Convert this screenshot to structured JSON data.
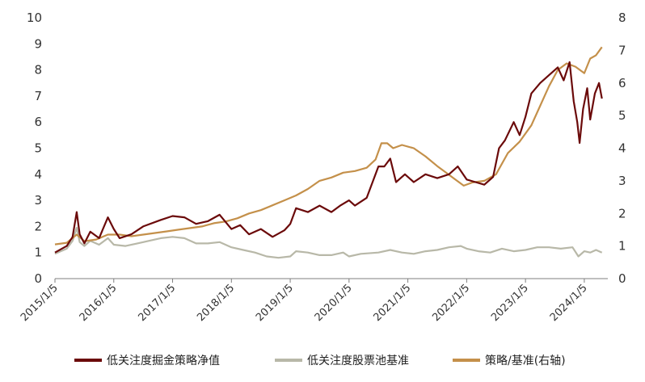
{
  "chart_data": {
    "type": "line",
    "title": "",
    "x_tick_labels": [
      "2015/1/5",
      "2016/1/5",
      "2017/1/5",
      "2018/1/5",
      "2019/1/5",
      "2020/1/5",
      "2021/1/5",
      "2022/1/5",
      "2023/1/5",
      "2024/1/5"
    ],
    "x_range": [
      2015.0,
      2024.4
    ],
    "ylim_left": [
      0,
      10
    ],
    "ylim_right": [
      0,
      8
    ],
    "y_left_ticks": [
      "0",
      "1",
      "2",
      "3",
      "4",
      "5",
      "6",
      "7",
      "8",
      "9",
      "10"
    ],
    "y_right_ticks": [
      "0",
      "1",
      "2",
      "3",
      "4",
      "5",
      "6",
      "7",
      "8"
    ],
    "grid": false,
    "legend_position": "bottom",
    "series": [
      {
        "name": "低关注度掘金策略净值",
        "axis": "left",
        "color": "#6B0A0A",
        "points": [
          [
            2015.0,
            1.0
          ],
          [
            2015.2,
            1.25
          ],
          [
            2015.3,
            1.6
          ],
          [
            2015.37,
            2.55
          ],
          [
            2015.42,
            1.7
          ],
          [
            2015.5,
            1.35
          ],
          [
            2015.6,
            1.8
          ],
          [
            2015.75,
            1.55
          ],
          [
            2015.9,
            2.35
          ],
          [
            2016.0,
            1.9
          ],
          [
            2016.1,
            1.55
          ],
          [
            2016.3,
            1.7
          ],
          [
            2016.5,
            2.0
          ],
          [
            2016.8,
            2.25
          ],
          [
            2017.0,
            2.4
          ],
          [
            2017.2,
            2.35
          ],
          [
            2017.4,
            2.1
          ],
          [
            2017.6,
            2.2
          ],
          [
            2017.8,
            2.45
          ],
          [
            2018.0,
            1.9
          ],
          [
            2018.15,
            2.05
          ],
          [
            2018.3,
            1.7
          ],
          [
            2018.5,
            1.9
          ],
          [
            2018.7,
            1.6
          ],
          [
            2018.9,
            1.85
          ],
          [
            2019.0,
            2.1
          ],
          [
            2019.1,
            2.7
          ],
          [
            2019.3,
            2.55
          ],
          [
            2019.5,
            2.8
          ],
          [
            2019.7,
            2.55
          ],
          [
            2019.85,
            2.8
          ],
          [
            2020.0,
            3.0
          ],
          [
            2020.1,
            2.8
          ],
          [
            2020.3,
            3.1
          ],
          [
            2020.5,
            4.3
          ],
          [
            2020.6,
            4.3
          ],
          [
            2020.7,
            4.6
          ],
          [
            2020.8,
            3.7
          ],
          [
            2020.95,
            4.0
          ],
          [
            2021.1,
            3.7
          ],
          [
            2021.3,
            4.0
          ],
          [
            2021.5,
            3.85
          ],
          [
            2021.7,
            4.0
          ],
          [
            2021.85,
            4.3
          ],
          [
            2022.0,
            3.8
          ],
          [
            2022.15,
            3.7
          ],
          [
            2022.3,
            3.6
          ],
          [
            2022.45,
            3.9
          ],
          [
            2022.55,
            5.0
          ],
          [
            2022.65,
            5.3
          ],
          [
            2022.8,
            6.0
          ],
          [
            2022.9,
            5.5
          ],
          [
            2023.0,
            6.2
          ],
          [
            2023.1,
            7.1
          ],
          [
            2023.25,
            7.5
          ],
          [
            2023.4,
            7.8
          ],
          [
            2023.55,
            8.1
          ],
          [
            2023.65,
            7.6
          ],
          [
            2023.75,
            8.3
          ],
          [
            2023.82,
            6.8
          ],
          [
            2023.88,
            6.0
          ],
          [
            2023.92,
            5.2
          ],
          [
            2023.98,
            6.5
          ],
          [
            2024.05,
            7.3
          ],
          [
            2024.1,
            6.1
          ],
          [
            2024.18,
            7.1
          ],
          [
            2024.25,
            7.5
          ],
          [
            2024.3,
            6.9
          ]
        ]
      },
      {
        "name": "低关注度股票池基准",
        "axis": "left",
        "color": "#B8B8A8",
        "points": [
          [
            2015.0,
            0.95
          ],
          [
            2015.2,
            1.15
          ],
          [
            2015.3,
            1.45
          ],
          [
            2015.37,
            1.95
          ],
          [
            2015.42,
            1.4
          ],
          [
            2015.5,
            1.25
          ],
          [
            2015.6,
            1.45
          ],
          [
            2015.75,
            1.3
          ],
          [
            2015.9,
            1.55
          ],
          [
            2016.0,
            1.3
          ],
          [
            2016.2,
            1.25
          ],
          [
            2016.4,
            1.35
          ],
          [
            2016.6,
            1.45
          ],
          [
            2016.8,
            1.55
          ],
          [
            2017.0,
            1.6
          ],
          [
            2017.2,
            1.55
          ],
          [
            2017.4,
            1.35
          ],
          [
            2017.6,
            1.35
          ],
          [
            2017.8,
            1.4
          ],
          [
            2018.0,
            1.2
          ],
          [
            2018.2,
            1.1
          ],
          [
            2018.4,
            1.0
          ],
          [
            2018.6,
            0.85
          ],
          [
            2018.8,
            0.8
          ],
          [
            2019.0,
            0.85
          ],
          [
            2019.1,
            1.05
          ],
          [
            2019.3,
            1.0
          ],
          [
            2019.5,
            0.9
          ],
          [
            2019.7,
            0.9
          ],
          [
            2019.9,
            1.0
          ],
          [
            2020.0,
            0.85
          ],
          [
            2020.2,
            0.95
          ],
          [
            2020.5,
            1.0
          ],
          [
            2020.7,
            1.1
          ],
          [
            2020.9,
            1.0
          ],
          [
            2021.1,
            0.95
          ],
          [
            2021.3,
            1.05
          ],
          [
            2021.5,
            1.1
          ],
          [
            2021.7,
            1.2
          ],
          [
            2021.9,
            1.25
          ],
          [
            2022.0,
            1.15
          ],
          [
            2022.2,
            1.05
          ],
          [
            2022.4,
            1.0
          ],
          [
            2022.6,
            1.15
          ],
          [
            2022.8,
            1.05
          ],
          [
            2023.0,
            1.1
          ],
          [
            2023.2,
            1.2
          ],
          [
            2023.4,
            1.2
          ],
          [
            2023.6,
            1.15
          ],
          [
            2023.8,
            1.2
          ],
          [
            2023.9,
            0.85
          ],
          [
            2024.0,
            1.05
          ],
          [
            2024.1,
            1.0
          ],
          [
            2024.2,
            1.1
          ],
          [
            2024.3,
            1.0
          ]
        ]
      },
      {
        "name": "策略/基准(右轴)",
        "axis": "right",
        "color": "#C4904A",
        "points": [
          [
            2015.0,
            1.05
          ],
          [
            2015.2,
            1.1
          ],
          [
            2015.37,
            1.35
          ],
          [
            2015.5,
            1.15
          ],
          [
            2015.7,
            1.2
          ],
          [
            2015.9,
            1.35
          ],
          [
            2016.1,
            1.35
          ],
          [
            2016.3,
            1.3
          ],
          [
            2016.5,
            1.35
          ],
          [
            2016.7,
            1.4
          ],
          [
            2016.9,
            1.45
          ],
          [
            2017.1,
            1.5
          ],
          [
            2017.3,
            1.55
          ],
          [
            2017.5,
            1.6
          ],
          [
            2017.7,
            1.7
          ],
          [
            2017.9,
            1.75
          ],
          [
            2018.1,
            1.85
          ],
          [
            2018.3,
            2.0
          ],
          [
            2018.5,
            2.1
          ],
          [
            2018.7,
            2.25
          ],
          [
            2018.9,
            2.4
          ],
          [
            2019.1,
            2.55
          ],
          [
            2019.3,
            2.75
          ],
          [
            2019.5,
            3.0
          ],
          [
            2019.7,
            3.1
          ],
          [
            2019.9,
            3.25
          ],
          [
            2020.1,
            3.3
          ],
          [
            2020.3,
            3.4
          ],
          [
            2020.45,
            3.65
          ],
          [
            2020.55,
            4.15
          ],
          [
            2020.65,
            4.15
          ],
          [
            2020.75,
            4.0
          ],
          [
            2020.9,
            4.1
          ],
          [
            2021.1,
            4.0
          ],
          [
            2021.3,
            3.75
          ],
          [
            2021.5,
            3.45
          ],
          [
            2021.65,
            3.25
          ],
          [
            2021.8,
            3.05
          ],
          [
            2021.95,
            2.85
          ],
          [
            2022.1,
            2.95
          ],
          [
            2022.3,
            3.0
          ],
          [
            2022.5,
            3.2
          ],
          [
            2022.7,
            3.85
          ],
          [
            2022.9,
            4.2
          ],
          [
            2023.1,
            4.7
          ],
          [
            2023.25,
            5.3
          ],
          [
            2023.4,
            5.9
          ],
          [
            2023.55,
            6.4
          ],
          [
            2023.7,
            6.6
          ],
          [
            2023.85,
            6.5
          ],
          [
            2024.0,
            6.3
          ],
          [
            2024.1,
            6.75
          ],
          [
            2024.2,
            6.85
          ],
          [
            2024.3,
            7.1
          ]
        ]
      }
    ]
  }
}
